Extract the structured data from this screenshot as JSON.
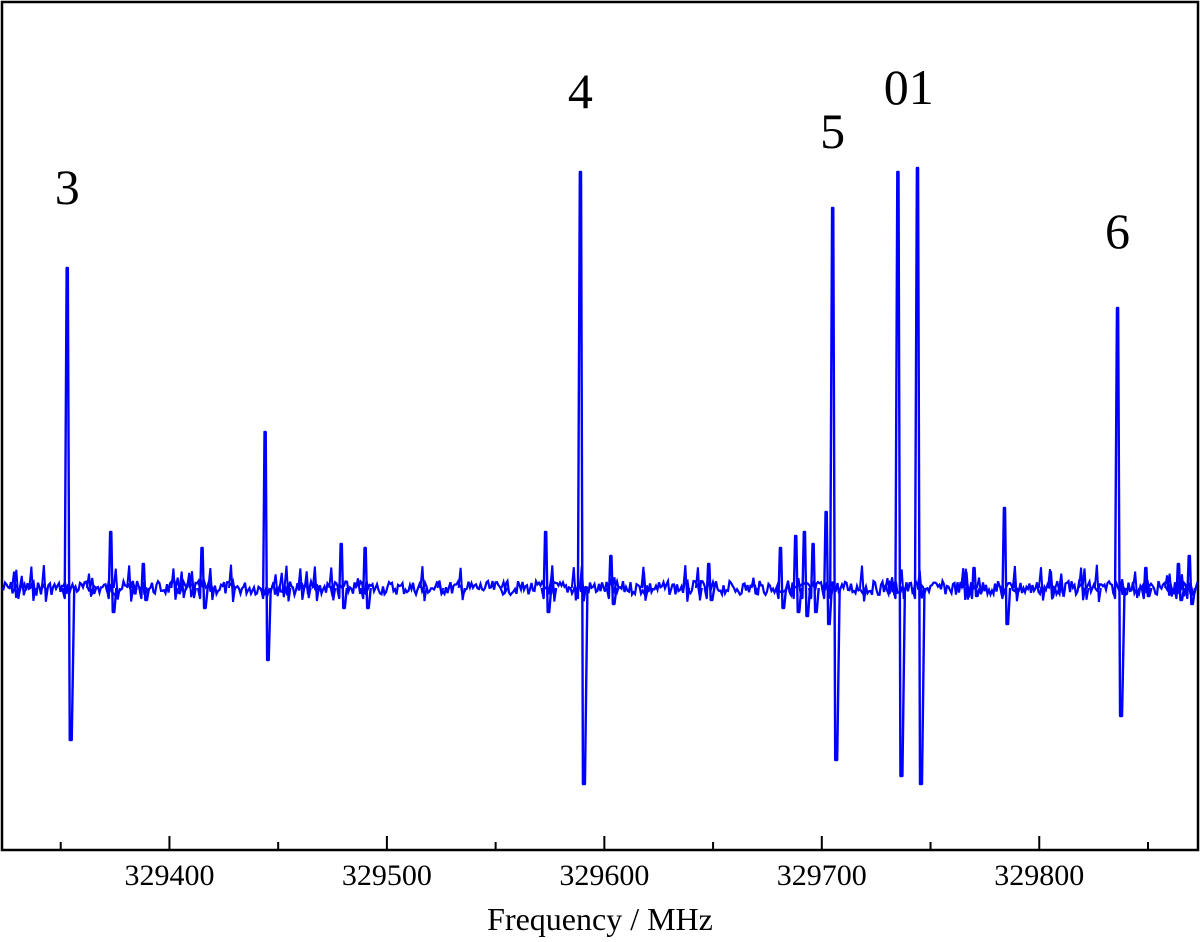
{
  "chart_data": {
    "type": "line",
    "title": "",
    "xlabel": "Frequency / MHz",
    "ylabel": "",
    "xlim": [
      329323,
      329873
    ],
    "ylim": [
      -1.0,
      1.0
    ],
    "x_ticks": [
      329400,
      329500,
      329600,
      329700,
      329800
    ],
    "x_tick_labels": [
      "329400",
      "329500",
      "329600",
      "329700",
      "329800"
    ],
    "y_ticks_shown": false,
    "grid": false,
    "legend": "none",
    "series": [
      {
        "color": "#0000ff",
        "style": "second-derivative spectrum (positive peak with negative lobes)",
        "lines": [
          {
            "x": 329353,
            "y": 0.8,
            "neg": -0.38
          },
          {
            "x": 329373,
            "y": 0.14,
            "neg": -0.06
          },
          {
            "x": 329388,
            "y": 0.06,
            "neg": -0.03
          },
          {
            "x": 329415,
            "y": 0.1,
            "neg": -0.05
          },
          {
            "x": 329444,
            "y": 0.39,
            "neg": -0.18
          },
          {
            "x": 329479,
            "y": 0.11,
            "neg": -0.05
          },
          {
            "x": 329490,
            "y": 0.1,
            "neg": -0.05
          },
          {
            "x": 329573,
            "y": 0.14,
            "neg": -0.06
          },
          {
            "x": 329589,
            "y": 1.04,
            "neg": -0.49
          },
          {
            "x": 329603,
            "y": 0.08,
            "neg": -0.04
          },
          {
            "x": 329648,
            "y": 0.06,
            "neg": -0.03
          },
          {
            "x": 329681,
            "y": 0.1,
            "neg": -0.05
          },
          {
            "x": 329688,
            "y": 0.13,
            "neg": -0.06
          },
          {
            "x": 329692,
            "y": 0.14,
            "neg": -0.07
          },
          {
            "x": 329696,
            "y": 0.11,
            "neg": -0.06
          },
          {
            "x": 329702,
            "y": 0.19,
            "neg": -0.09
          },
          {
            "x": 329705,
            "y": 0.95,
            "neg": -0.43
          },
          {
            "x": 329735,
            "y": 1.04,
            "neg": -0.47
          },
          {
            "x": 329744,
            "y": 1.05,
            "neg": -0.49
          },
          {
            "x": 329770,
            "y": 0.05,
            "neg": -0.02
          },
          {
            "x": 329784,
            "y": 0.2,
            "neg": -0.09
          },
          {
            "x": 329836,
            "y": 0.7,
            "neg": -0.32
          },
          {
            "x": 329849,
            "y": 0.05,
            "neg": -0.02
          },
          {
            "x": 329864,
            "y": 0.06,
            "neg": -0.03
          },
          {
            "x": 329869,
            "y": 0.08,
            "neg": -0.04
          }
        ]
      }
    ],
    "annotations": [
      {
        "text": "3",
        "x": 329353,
        "y": 0.96
      },
      {
        "text": "4",
        "x": 329589,
        "y": 1.2
      },
      {
        "text": "5",
        "x": 329705,
        "y": 1.1
      },
      {
        "text": "01",
        "x": 329740,
        "y": 1.21
      },
      {
        "text": "6",
        "x": 329836,
        "y": 0.85
      }
    ]
  }
}
